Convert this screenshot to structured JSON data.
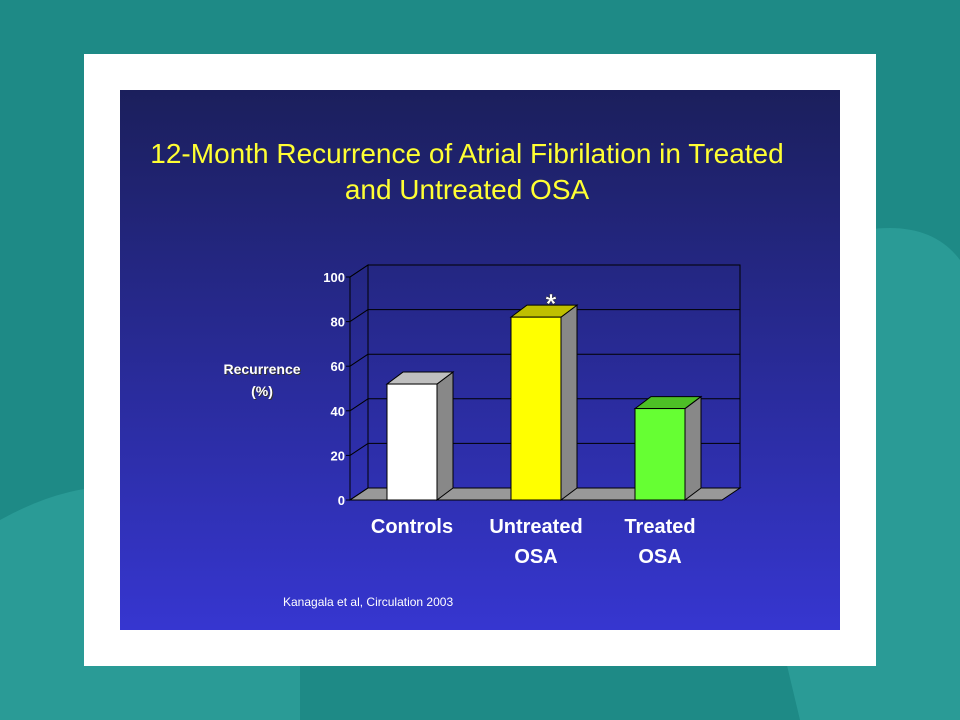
{
  "chart_data": {
    "type": "bar3d",
    "title": "12-Month Recurrence of Atrial Fibrilation in Treated and Untreated OSA",
    "ylabel": "Recurrence (%)",
    "categories": [
      "Controls",
      "Untreated OSA",
      "Treated OSA"
    ],
    "values": [
      52,
      82,
      41
    ],
    "colors": [
      "#ffffff",
      "#ffff00",
      "#66ff33"
    ],
    "ylim": [
      0,
      100
    ],
    "yticks": [
      0,
      20,
      40,
      60,
      80,
      100
    ],
    "grid": true,
    "annotation": "*",
    "source": "Kanagala et al, Circulation 2003"
  }
}
